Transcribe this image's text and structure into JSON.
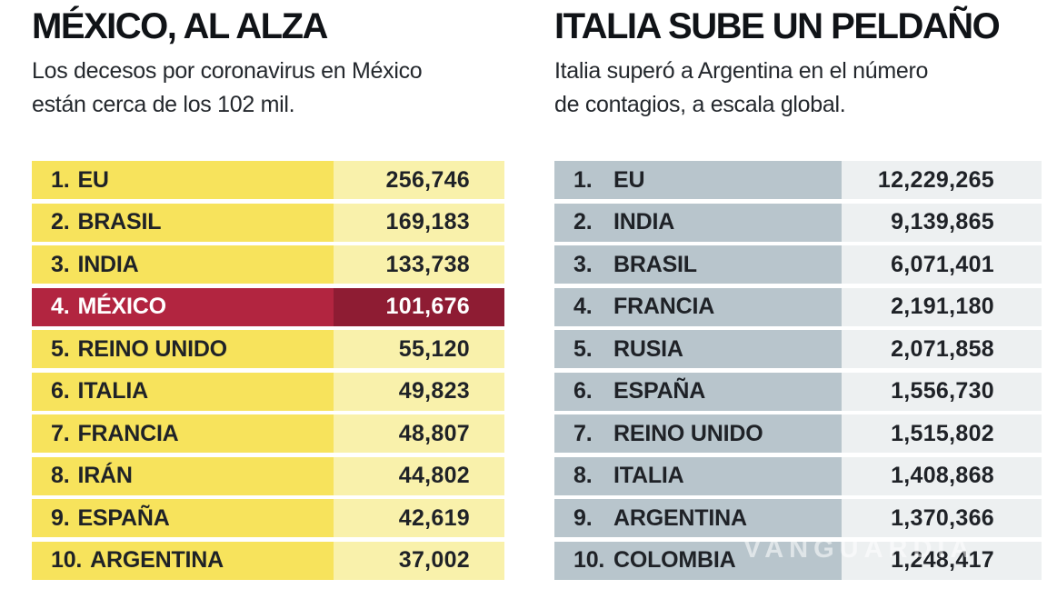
{
  "colors": {
    "yellow": "#f7e35c",
    "yellow_pale": "#f9f1ab",
    "crimson": "#b22540",
    "crimson_dark": "#8e1c33",
    "bluegray": "#b8c5cc",
    "gray_pale": "#edf0f1",
    "title": "#101317",
    "subtitle": "#24282d",
    "text_dark": "#1f2227"
  },
  "watermark": "VANGUARDIA",
  "left_panel": {
    "title": "MÉXICO, AL ALZA",
    "subtitle_line1": "Los decesos por coronavirus en México",
    "subtitle_line2": "están cerca de los 102 mil.",
    "rows": [
      {
        "rank": "1.",
        "name": "EU",
        "value": "256,746",
        "highlight": false
      },
      {
        "rank": "2.",
        "name": "BRASIL",
        "value": "169,183",
        "highlight": false
      },
      {
        "rank": "3.",
        "name": "INDIA",
        "value": "133,738",
        "highlight": false
      },
      {
        "rank": "4.",
        "name": "MÉXICO",
        "value": "101,676",
        "highlight": true
      },
      {
        "rank": "5.",
        "name": "REINO UNIDO",
        "value": "55,120",
        "highlight": false
      },
      {
        "rank": "6.",
        "name": "ITALIA",
        "value": "49,823",
        "highlight": false
      },
      {
        "rank": "7.",
        "name": "FRANCIA",
        "value": "48,807",
        "highlight": false
      },
      {
        "rank": "8.",
        "name": "IRÁN",
        "value": "44,802",
        "highlight": false
      },
      {
        "rank": "9.",
        "name": "ESPAÑA",
        "value": "42,619",
        "highlight": false
      },
      {
        "rank": "10.",
        "name": "ARGENTINA",
        "value": "37,002",
        "highlight": false
      }
    ]
  },
  "right_panel": {
    "title": "ITALIA SUBE UN PELDAÑO",
    "subtitle_line1": "Italia superó a Argentina en el número",
    "subtitle_line2": "de contagios, a escala global.",
    "rows": [
      {
        "rank": "1.",
        "name": "EU",
        "value": "12,229,265",
        "highlight": false
      },
      {
        "rank": "2.",
        "name": "INDIA",
        "value": "9,139,865",
        "highlight": false
      },
      {
        "rank": "3.",
        "name": "BRASIL",
        "value": "6,071,401",
        "highlight": false
      },
      {
        "rank": "4.",
        "name": "FRANCIA",
        "value": "2,191,180",
        "highlight": false
      },
      {
        "rank": "5.",
        "name": "RUSIA",
        "value": "2,071,858",
        "highlight": false
      },
      {
        "rank": "6.",
        "name": "ESPAÑA",
        "value": "1,556,730",
        "highlight": false
      },
      {
        "rank": "7.",
        "name": "REINO UNIDO",
        "value": "1,515,802",
        "highlight": false
      },
      {
        "rank": "8.",
        "name": "ITALIA",
        "value": "1,408,868",
        "highlight": false
      },
      {
        "rank": "9.",
        "name": "ARGENTINA",
        "value": "1,370,366",
        "highlight": false
      },
      {
        "rank": "10.",
        "name": "COLOMBIA",
        "value": "1,248,417",
        "highlight": false
      }
    ]
  },
  "chart_data": [
    {
      "type": "table",
      "title": "MÉXICO, AL ALZA",
      "subtitle": "Los decesos por coronavirus en México están cerca de los 102 mil.",
      "metric": "decesos por coronavirus",
      "categories": [
        "EU",
        "BRASIL",
        "INDIA",
        "MÉXICO",
        "REINO UNIDO",
        "ITALIA",
        "FRANCIA",
        "IRÁN",
        "ESPAÑA",
        "ARGENTINA"
      ],
      "values": [
        256746,
        169183,
        133738,
        101676,
        55120,
        49823,
        48807,
        44802,
        42619,
        37002
      ],
      "highlighted_category": "MÉXICO"
    },
    {
      "type": "table",
      "title": "ITALIA SUBE UN PELDAÑO",
      "subtitle": "Italia superó a Argentina en el número de contagios, a escala global.",
      "metric": "contagios",
      "categories": [
        "EU",
        "INDIA",
        "BRASIL",
        "FRANCIA",
        "RUSIA",
        "ESPAÑA",
        "REINO UNIDO",
        "ITALIA",
        "ARGENTINA",
        "COLOMBIA"
      ],
      "values": [
        12229265,
        9139865,
        6071401,
        2191180,
        2071858,
        1556730,
        1515802,
        1408868,
        1370366,
        1248417
      ],
      "highlighted_category": null
    }
  ]
}
